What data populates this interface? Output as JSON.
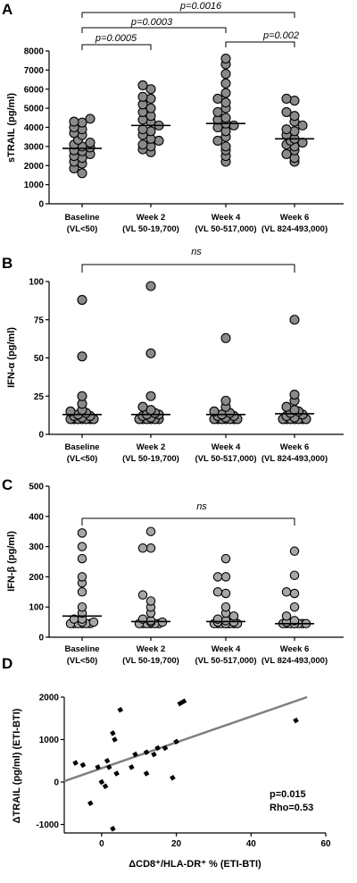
{
  "colors": {
    "dot_dark": "#8a8a8a",
    "dot_light": "#a6a6a6",
    "regression": "#7f7f7f",
    "point": "#000000"
  },
  "panels": [
    {
      "letter": "A",
      "ylabel": "sTRAIL (pg/ml)",
      "ylim": [
        0,
        8000
      ],
      "yticks": [
        "0",
        "1000",
        "2000",
        "3000",
        "4000",
        "5000",
        "6000",
        "7000",
        "8000"
      ],
      "categories": [
        {
          "line1": "Baseline",
          "line2": "(VL<50)"
        },
        {
          "line1": "Week 2",
          "line2": "(VL 50-19,700)"
        },
        {
          "line1": "Week 4",
          "line2": "(VL 50-517,000)"
        },
        {
          "line1": "Week 6",
          "line2": "(VL 824-493,000)"
        }
      ],
      "brackets": [
        {
          "from": 0,
          "to": 1,
          "label": "p=0.0005"
        },
        {
          "from": 2,
          "to": 3,
          "label": "p=0.002"
        },
        {
          "from": 0,
          "to": 2,
          "label": "p=0.0003"
        },
        {
          "from": 0,
          "to": 3,
          "label": "p=0.0016"
        }
      ]
    },
    {
      "letter": "B",
      "ylabel": "IFN-α (pg/ml)",
      "ylim": [
        0,
        100
      ],
      "yticks": [
        "0",
        "25",
        "50",
        "75",
        "100"
      ],
      "categories": [
        {
          "line1": "Baseline",
          "line2": "(VL<50)"
        },
        {
          "line1": "Week 2",
          "line2": "(VL 50-19,700)"
        },
        {
          "line1": "Week 4",
          "line2": "(VL 50-517,000)"
        },
        {
          "line1": "Week 6",
          "line2": "(VL 824-493,000)"
        }
      ],
      "brackets": [
        {
          "from": 0,
          "to": 3,
          "label": "ns"
        }
      ]
    },
    {
      "letter": "C",
      "ylabel": "IFN-β (pg/ml)",
      "ylim": [
        0,
        500
      ],
      "yticks": [
        "0",
        "100",
        "200",
        "300",
        "400",
        "500"
      ],
      "categories": [
        {
          "line1": "Baseline",
          "line2": "(VL<50)"
        },
        {
          "line1": "Week 2",
          "line2": "(VL 50-19,700)"
        },
        {
          "line1": "Week 4",
          "line2": "(VL 50-517,000)"
        },
        {
          "line1": "Week 6",
          "line2": "(VL 824-493,000)"
        }
      ],
      "brackets": [
        {
          "from": 0,
          "to": 3,
          "label": "ns"
        }
      ]
    },
    {
      "letter": "D",
      "xlabel": "ΔCD8⁺/HLA-DR⁺ % (ETI-BTI)",
      "ylabel": "ΔTRAIL (pg/ml) (ETI-BTI)",
      "xlim": [
        -10,
        60
      ],
      "ylim": [
        -1200,
        2000
      ],
      "xticks": [
        "0",
        "20",
        "40",
        "60"
      ],
      "yticks": [
        "-1000",
        "0",
        "1000",
        "2000"
      ],
      "stats_p": "p=0.015",
      "stats_rho": "Rho=0.53"
    }
  ],
  "chart_data": [
    {
      "type": "scatter",
      "title": "",
      "ylabel": "sTRAIL (pg/ml)",
      "ylim": [
        0,
        8000
      ],
      "categories": [
        "Baseline (VL<50)",
        "Week 2 (VL 50-19,700)",
        "Week 4 (VL 50-517,000)",
        "Week 6 (VL 824-493,000)"
      ],
      "series": [
        {
          "values": [
            4450,
            4250,
            4300,
            4000,
            3900,
            3700,
            3600,
            3350,
            3200,
            3100,
            3000,
            2950,
            2800,
            2750,
            2600,
            2500,
            2400,
            2200,
            2100,
            1850,
            1600
          ]
        },
        {
          "values": [
            6200,
            6000,
            5600,
            5500,
            5200,
            5000,
            4800,
            4600,
            4400,
            4300,
            4100,
            3900,
            3800,
            3600,
            3400,
            3300,
            3100,
            3000,
            2850,
            2700
          ]
        },
        {
          "values": [
            7600,
            7300,
            6800,
            6300,
            5800,
            5500,
            5300,
            5000,
            4800,
            4500,
            4400,
            4200,
            4100,
            4000,
            3800,
            3500,
            3300,
            3000,
            2800,
            2500,
            2200
          ]
        },
        {
          "values": [
            5500,
            5400,
            4800,
            4600,
            4300,
            4100,
            3900,
            3800,
            3600,
            3400,
            3300,
            3200,
            3100,
            3000,
            2800,
            2600,
            2400,
            2200
          ]
        }
      ],
      "medians": [
        2900,
        4100,
        4200,
        3400
      ],
      "annotations": [
        "p=0.0005",
        "p=0.0003",
        "p=0.0016",
        "p=0.002"
      ]
    },
    {
      "type": "scatter",
      "title": "",
      "ylabel": "IFN-α (pg/ml)",
      "ylim": [
        0,
        100
      ],
      "categories": [
        "Baseline (VL<50)",
        "Week 2 (VL 50-19,700)",
        "Week 4 (VL 50-517,000)",
        "Week 6 (VL 824-493,000)"
      ],
      "series": [
        {
          "values": [
            88,
            51,
            25,
            20,
            16,
            15,
            14,
            13,
            12,
            12,
            11,
            10,
            10,
            10,
            10,
            10,
            10,
            10
          ]
        },
        {
          "values": [
            97,
            53,
            25,
            18,
            16,
            14,
            13,
            13,
            12,
            11,
            10,
            10,
            10,
            10,
            10,
            10
          ]
        },
        {
          "values": [
            63,
            22,
            18,
            15,
            14,
            13,
            12,
            12,
            11,
            10,
            10,
            10,
            10,
            10,
            10,
            10
          ]
        },
        {
          "values": [
            75,
            26,
            22,
            18,
            16,
            15,
            14,
            13,
            12,
            11,
            10,
            10,
            10,
            10,
            10,
            10,
            10
          ]
        }
      ],
      "medians": [
        13,
        13,
        13,
        13.5
      ],
      "annotations": [
        "ns"
      ]
    },
    {
      "type": "scatter",
      "title": "",
      "ylabel": "IFN-β (pg/ml)",
      "ylim": [
        0,
        500
      ],
      "categories": [
        "Baseline (VL<50)",
        "Week 2 (VL 50-19,700)",
        "Week 4 (VL 50-517,000)",
        "Week 6 (VL 824-493,000)"
      ],
      "series": [
        {
          "values": [
            345,
            300,
            260,
            200,
            180,
            150,
            100,
            80,
            60,
            60,
            50,
            50,
            45,
            45,
            45,
            45,
            45,
            45
          ]
        },
        {
          "values": [
            350,
            295,
            295,
            140,
            120,
            100,
            80,
            60,
            55,
            50,
            50,
            45,
            45,
            45,
            45,
            45,
            45
          ]
        },
        {
          "values": [
            260,
            200,
            200,
            150,
            145,
            100,
            80,
            70,
            60,
            55,
            50,
            50,
            45,
            45,
            45,
            45,
            45,
            45,
            45,
            45
          ]
        },
        {
          "values": [
            285,
            205,
            150,
            145,
            100,
            70,
            55,
            50,
            45,
            45,
            45,
            45,
            45,
            45,
            45,
            45
          ]
        }
      ],
      "medians": [
        70,
        52,
        52,
        45
      ],
      "annotations": [
        "ns"
      ]
    },
    {
      "type": "scatter",
      "title": "",
      "xlabel": "ΔCD8⁺/HLA-DR⁺ % (ETI-BTI)",
      "ylabel": "ΔTRAIL (pg/ml) (ETI-BTI)",
      "xlim": [
        -10,
        60
      ],
      "ylim": [
        -1200,
        2000
      ],
      "points": [
        [
          -7,
          450
        ],
        [
          -5,
          400
        ],
        [
          -3,
          -500
        ],
        [
          -1,
          350
        ],
        [
          0,
          0
        ],
        [
          1,
          -100
        ],
        [
          1.5,
          500
        ],
        [
          2,
          350
        ],
        [
          3,
          -1100
        ],
        [
          3,
          1150
        ],
        [
          3.5,
          1000
        ],
        [
          4,
          200
        ],
        [
          5,
          1700
        ],
        [
          8,
          350
        ],
        [
          9,
          650
        ],
        [
          12,
          200
        ],
        [
          12,
          700
        ],
        [
          14,
          650
        ],
        [
          15,
          800
        ],
        [
          17,
          800
        ],
        [
          19,
          100
        ],
        [
          20,
          950
        ],
        [
          21,
          1850
        ],
        [
          22,
          1900
        ],
        [
          52,
          1450
        ]
      ],
      "regression": {
        "x": [
          -10,
          55
        ],
        "y": [
          20,
          2000
        ]
      },
      "annotations": [
        "p=0.015",
        "Rho=0.53"
      ]
    }
  ]
}
